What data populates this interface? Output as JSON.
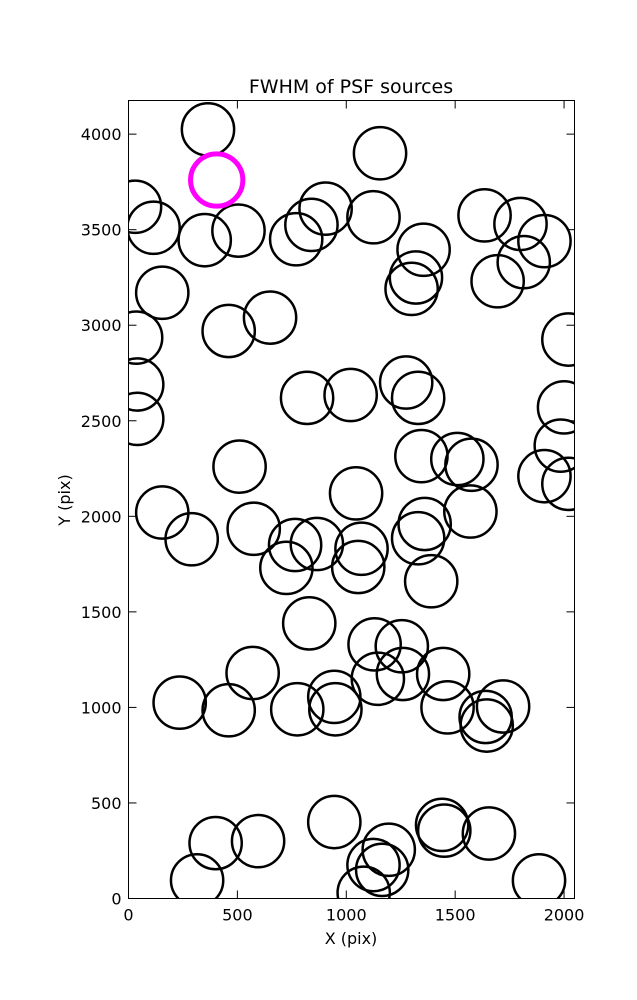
{
  "chart_data": {
    "type": "scatter",
    "title": "FWHM of PSF sources",
    "xlabel": "X (pix)",
    "ylabel": "Y (pix)",
    "xlim": [
      0,
      2048
    ],
    "ylim": [
      0,
      4176
    ],
    "xticks": [
      "0",
      "500",
      "1000",
      "1500",
      "2000"
    ],
    "yticks": [
      "0",
      "500",
      "1000",
      "1500",
      "2000",
      "2500",
      "3000",
      "3500",
      "4000"
    ],
    "grid": false,
    "legend": "none",
    "marker": "circle",
    "marker_radius_pix": 120,
    "colors": {
      "sources": "#000000",
      "highlight": "#ff00ff"
    },
    "highlight": {
      "x": 405,
      "y": 3760
    },
    "sources": [
      {
        "x": 365,
        "y": 4025
      },
      {
        "x": 1155,
        "y": 3900
      },
      {
        "x": 30,
        "y": 3620
      },
      {
        "x": 905,
        "y": 3610
      },
      {
        "x": 115,
        "y": 3510
      },
      {
        "x": 505,
        "y": 3495
      },
      {
        "x": 350,
        "y": 3445
      },
      {
        "x": 770,
        "y": 3450
      },
      {
        "x": 840,
        "y": 3525
      },
      {
        "x": 1125,
        "y": 3565
      },
      {
        "x": 1635,
        "y": 3575
      },
      {
        "x": 1800,
        "y": 3530
      },
      {
        "x": 1910,
        "y": 3440
      },
      {
        "x": 1355,
        "y": 3395
      },
      {
        "x": 1320,
        "y": 3250
      },
      {
        "x": 1300,
        "y": 3190
      },
      {
        "x": 1695,
        "y": 3230
      },
      {
        "x": 1815,
        "y": 3330
      },
      {
        "x": 155,
        "y": 3170
      },
      {
        "x": 650,
        "y": 3040
      },
      {
        "x": 460,
        "y": 2970
      },
      {
        "x": 35,
        "y": 2935
      },
      {
        "x": 2020,
        "y": 2925
      },
      {
        "x": 40,
        "y": 2690
      },
      {
        "x": 820,
        "y": 2620
      },
      {
        "x": 1020,
        "y": 2635
      },
      {
        "x": 1275,
        "y": 2700
      },
      {
        "x": 1330,
        "y": 2620
      },
      {
        "x": 2000,
        "y": 2570
      },
      {
        "x": 40,
        "y": 2510
      },
      {
        "x": 1985,
        "y": 2370
      },
      {
        "x": 1345,
        "y": 2315
      },
      {
        "x": 1510,
        "y": 2300
      },
      {
        "x": 1575,
        "y": 2270
      },
      {
        "x": 510,
        "y": 2260
      },
      {
        "x": 1910,
        "y": 2210
      },
      {
        "x": 2020,
        "y": 2170
      },
      {
        "x": 1045,
        "y": 2120
      },
      {
        "x": 155,
        "y": 2020
      },
      {
        "x": 1570,
        "y": 2025
      },
      {
        "x": 290,
        "y": 1880
      },
      {
        "x": 575,
        "y": 1935
      },
      {
        "x": 1360,
        "y": 1960
      },
      {
        "x": 1330,
        "y": 1885
      },
      {
        "x": 765,
        "y": 1850
      },
      {
        "x": 865,
        "y": 1855
      },
      {
        "x": 1070,
        "y": 1830
      },
      {
        "x": 1055,
        "y": 1735
      },
      {
        "x": 725,
        "y": 1730
      },
      {
        "x": 1390,
        "y": 1660
      },
      {
        "x": 830,
        "y": 1440
      },
      {
        "x": 1130,
        "y": 1330
      },
      {
        "x": 1255,
        "y": 1320
      },
      {
        "x": 570,
        "y": 1180
      },
      {
        "x": 1145,
        "y": 1150
      },
      {
        "x": 1260,
        "y": 1175
      },
      {
        "x": 1445,
        "y": 1175
      },
      {
        "x": 945,
        "y": 1055
      },
      {
        "x": 235,
        "y": 1025
      },
      {
        "x": 460,
        "y": 985
      },
      {
        "x": 775,
        "y": 990
      },
      {
        "x": 950,
        "y": 990
      },
      {
        "x": 1465,
        "y": 1000
      },
      {
        "x": 1720,
        "y": 1005
      },
      {
        "x": 1640,
        "y": 950
      },
      {
        "x": 1645,
        "y": 905
      },
      {
        "x": 945,
        "y": 400
      },
      {
        "x": 1440,
        "y": 385
      },
      {
        "x": 1450,
        "y": 355
      },
      {
        "x": 1655,
        "y": 340
      },
      {
        "x": 400,
        "y": 290
      },
      {
        "x": 595,
        "y": 300
      },
      {
        "x": 1195,
        "y": 255
      },
      {
        "x": 1125,
        "y": 175
      },
      {
        "x": 1165,
        "y": 150
      },
      {
        "x": 315,
        "y": 95
      },
      {
        "x": 1885,
        "y": 95
      },
      {
        "x": 1080,
        "y": 30
      }
    ]
  }
}
